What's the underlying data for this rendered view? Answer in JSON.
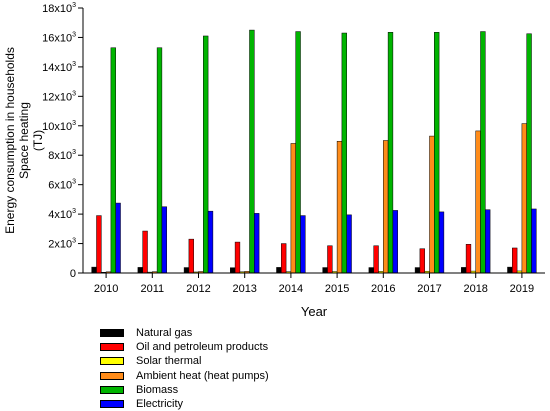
{
  "chart_data": {
    "type": "bar",
    "xlabel": "Year",
    "ylabel_lines": [
      "Energy consumption in households",
      "Space heating",
      "(TJ)"
    ],
    "ylim": [
      0,
      18000
    ],
    "y_ticks": [
      0,
      2000,
      4000,
      6000,
      8000,
      10000,
      12000,
      14000,
      16000,
      18000
    ],
    "y_tick_labels": [
      {
        "base": "0",
        "exp": ""
      },
      {
        "base": "2x10",
        "exp": "3"
      },
      {
        "base": "4x10",
        "exp": "3"
      },
      {
        "base": "6x10",
        "exp": "3"
      },
      {
        "base": "8x10",
        "exp": "3"
      },
      {
        "base": "10x10",
        "exp": "3"
      },
      {
        "base": "12x10",
        "exp": "3"
      },
      {
        "base": "14x10",
        "exp": "3"
      },
      {
        "base": "16x10",
        "exp": "3"
      },
      {
        "base": "18x10",
        "exp": "3"
      }
    ],
    "categories": [
      "2010",
      "2011",
      "2012",
      "2013",
      "2014",
      "2015",
      "2016",
      "2017",
      "2018",
      "2019"
    ],
    "series": [
      {
        "name": "Natural gas",
        "color": "#000000",
        "values": [
          400,
          380,
          370,
          360,
          380,
          370,
          370,
          370,
          380,
          400
        ]
      },
      {
        "name": "Oil and petroleum products",
        "color": "#ff0000",
        "values": [
          3900,
          2850,
          2300,
          2100,
          2000,
          1850,
          1850,
          1650,
          1950,
          1700
        ]
      },
      {
        "name": "Solar thermal",
        "color": "#ffff00",
        "values": [
          50,
          60,
          70,
          80,
          90,
          100,
          110,
          120,
          130,
          140
        ]
      },
      {
        "name": "Ambient heat (heat pumps)",
        "color": "#ff8c1a",
        "values": [
          80,
          90,
          100,
          110,
          8800,
          8950,
          9000,
          9300,
          9650,
          10150
        ]
      },
      {
        "name": "Biomass",
        "color": "#00b400",
        "values": [
          15300,
          15300,
          16100,
          16500,
          16400,
          16300,
          16350,
          16350,
          16400,
          16250
        ]
      },
      {
        "name": "Electricity",
        "color": "#0000ff",
        "values": [
          4750,
          4500,
          4200,
          4050,
          3900,
          3950,
          4250,
          4150,
          4300,
          4350
        ]
      }
    ],
    "grid": false,
    "legend_position": "below"
  }
}
